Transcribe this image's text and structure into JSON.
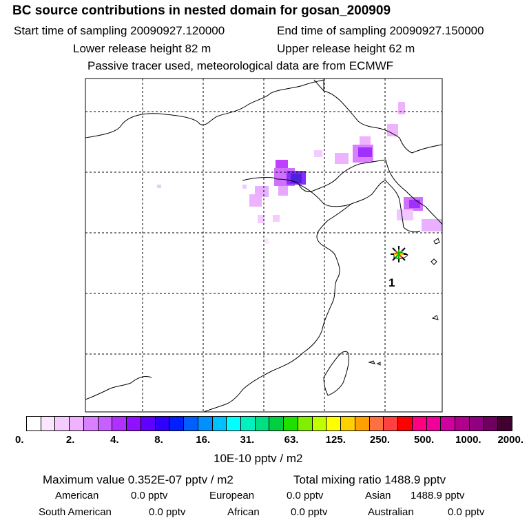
{
  "title": "BC  source contributions in nested domain for gosan_200909",
  "header": {
    "start": "Start time of sampling 20090927.120000",
    "end": "End time of sampling 20090927.150000",
    "lower": "Lower release height   82 m",
    "upper": "Upper release height   62 m",
    "info": "Passive tracer used, meteorological data are from ECMWF"
  },
  "map": {
    "station_label": "1",
    "station_icon": "star-burst-icon",
    "plume_colors": [
      "#f0c8ff",
      "#e080ff",
      "#c040ff",
      "#8000ff",
      "#4020e0"
    ]
  },
  "colorbar": {
    "colors": [
      "#ffffff",
      "#fbe6ff",
      "#f5ccff",
      "#efb2ff",
      "#d880ff",
      "#c860ff",
      "#b030ff",
      "#9010ff",
      "#6000ff",
      "#3000ff",
      "#0020ff",
      "#0060ff",
      "#0090ff",
      "#00c0ff",
      "#00ffff",
      "#00f0c0",
      "#00e080",
      "#00d040",
      "#20e000",
      "#80f000",
      "#c0ff00",
      "#ffff00",
      "#ffd000",
      "#ffa000",
      "#ff7040",
      "#ff4040",
      "#ff0000",
      "#ff0080",
      "#f0009a",
      "#d000a0",
      "#b0008c",
      "#900080",
      "#700060",
      "#400030"
    ],
    "ticks": [
      "0.",
      "2.",
      "4.",
      "8.",
      "16.",
      "31.",
      "63.",
      "125.",
      "250.",
      "500.",
      "1000.",
      "2000."
    ],
    "units": "10E-10 pptv / m2"
  },
  "stats": {
    "max": "Maximum value  0.352E-07 pptv / m2",
    "total": "Total mixing ratio      1488.9 pptv",
    "american_label": "American",
    "american_val": "0.0 pptv",
    "european_label": "European",
    "european_val": "0.0 pptv",
    "asian_label": "Asian",
    "asian_val": "1488.9 pptv",
    "samerican_label": "South American",
    "samerican_val": "0.0 pptv",
    "african_label": "African",
    "african_val": "0.0 pptv",
    "australian_label": "Australian",
    "australian_val": "0.0 pptv"
  }
}
